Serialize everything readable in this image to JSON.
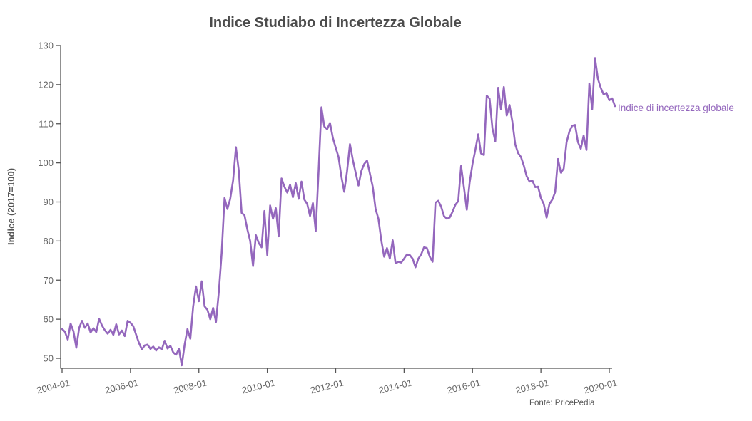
{
  "chart_data": {
    "type": "line",
    "title": "Indice Studiabo di Incertezza Globale",
    "y_axis_title": "Indice (2017=100)",
    "legend_label": "Indice di incertezza globale",
    "source": "Fonte: PricePedia",
    "line_color": "#9467bd",
    "axis_color": "#555555",
    "tick_label_color": "#666666",
    "title_color": "#4c4c4c",
    "start_month": "2004-01",
    "frequency": "monthly",
    "ylim": [
      47.5,
      130
    ],
    "y_ticks": [
      50,
      60,
      70,
      80,
      90,
      100,
      110,
      120,
      130
    ],
    "x_tick_labels": [
      "2004-01",
      "2006-01",
      "2008-01",
      "2010-01",
      "2012-01",
      "2014-01",
      "2016-01",
      "2018-01",
      "2020-01"
    ],
    "x_tick_every_months": 24,
    "legend_position": "right-of-line-end",
    "grid": false,
    "values": [
      57.5,
      56.8,
      54.8,
      58.9,
      56.9,
      52.7,
      57.8,
      59.6,
      57.8,
      58.9,
      56.6,
      57.7,
      56.7,
      60.1,
      58.4,
      57.2,
      56.3,
      57.3,
      56.0,
      58.7,
      56.1,
      57.1,
      55.7,
      59.6,
      59.1,
      58.2,
      56.0,
      53.9,
      52.3,
      53.3,
      53.5,
      52.4,
      53.0,
      52.0,
      52.8,
      52.3,
      54.5,
      52.5,
      53.2,
      51.5,
      50.9,
      52.4,
      48.2,
      53.5,
      57.5,
      55.0,
      63.3,
      68.4,
      64.6,
      69.7,
      63.3,
      62.4,
      60.0,
      62.9,
      59.3,
      67.0,
      77.0,
      91.0,
      88.2,
      90.8,
      95.5,
      104.0,
      98.0,
      87.2,
      86.6,
      83.0,
      80.0,
      73.6,
      81.5,
      79.5,
      78.4,
      87.7,
      76.4,
      89.1,
      85.7,
      88.4,
      81.2,
      96.0,
      93.9,
      92.4,
      94.4,
      91.2,
      94.8,
      90.8,
      95.2,
      90.6,
      89.5,
      86.4,
      89.7,
      82.5,
      97.9,
      114.2,
      109.3,
      108.6,
      110.2,
      106.4,
      103.9,
      101.5,
      96.5,
      92.6,
      97.9,
      104.8,
      100.8,
      97.5,
      94.2,
      97.9,
      99.7,
      100.6,
      97.3,
      93.9,
      88.2,
      85.7,
      80.2,
      76.0,
      78.2,
      75.5,
      80.2,
      74.3,
      74.7,
      74.5,
      75.5,
      76.6,
      76.4,
      75.5,
      73.3,
      75.5,
      76.6,
      78.4,
      78.2,
      76.0,
      74.7,
      89.8,
      90.3,
      88.8,
      86.4,
      85.7,
      86.0,
      87.5,
      89.3,
      90.2,
      99.2,
      93.7,
      88.0,
      95.0,
      99.7,
      103.3,
      107.3,
      102.4,
      102.0,
      117.2,
      116.4,
      108.8,
      105.5,
      119.2,
      113.7,
      119.4,
      112.1,
      114.8,
      110.5,
      104.7,
      102.5,
      101.5,
      99.3,
      96.6,
      95.2,
      95.5,
      93.8,
      93.9,
      91.0,
      89.5,
      86.0,
      89.5,
      90.6,
      92.5,
      101.0,
      97.5,
      98.5,
      105.2,
      108.0,
      109.5,
      109.7,
      105.3,
      103.6,
      107.0,
      103.3,
      120.3,
      113.7,
      126.8,
      121.5,
      119.2,
      117.5,
      117.9,
      116.0,
      116.5,
      114.5
    ]
  }
}
